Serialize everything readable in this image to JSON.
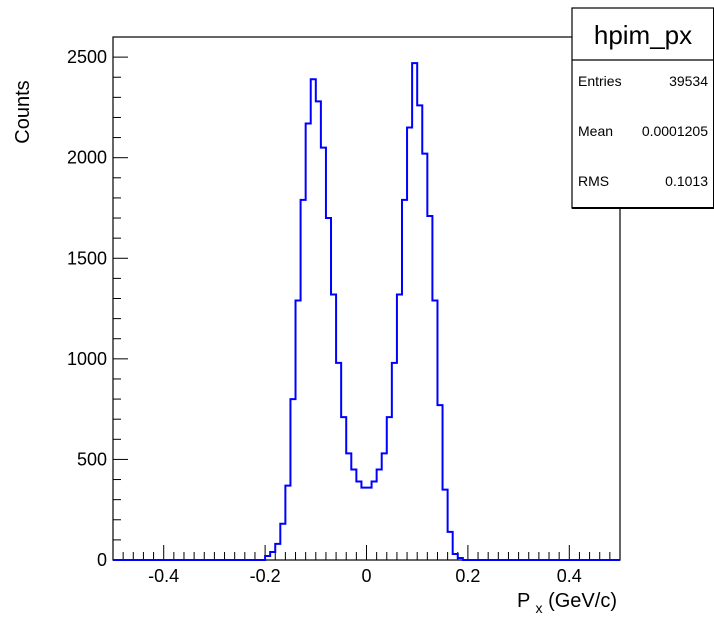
{
  "chart_data": {
    "type": "histogram",
    "xlabel_main": "P",
    "xlabel_sub": "x",
    "xlabel_unit": " (GeV/c)",
    "ylabel": "Counts",
    "xlim": [
      -0.5,
      0.5
    ],
    "ylim": [
      0,
      2600
    ],
    "xticks": [
      -0.4,
      -0.2,
      0,
      0.2,
      0.4
    ],
    "xtick_labels": [
      "-0.4",
      "-0.2",
      "0",
      "0.2",
      "0.4"
    ],
    "yticks": [
      0,
      500,
      1000,
      1500,
      2000,
      2500
    ],
    "ytick_labels": [
      "0",
      "500",
      "1000",
      "1500",
      "2000",
      "2500"
    ],
    "bin_start": -0.5,
    "bin_width": 0.01,
    "line_color": "#0000ff",
    "values": [
      0,
      0,
      0,
      0,
      0,
      0,
      0,
      0,
      0,
      0,
      0,
      0,
      0,
      0,
      0,
      0,
      0,
      0,
      0,
      0,
      0,
      0,
      0,
      0,
      0,
      0,
      0,
      0,
      0,
      0,
      20,
      40,
      80,
      180,
      370,
      800,
      1290,
      1790,
      2170,
      2390,
      2280,
      2050,
      1700,
      1320,
      980,
      710,
      530,
      450,
      390,
      360,
      360,
      390,
      450,
      530,
      710,
      980,
      1320,
      1790,
      2150,
      2470,
      2260,
      2020,
      1710,
      1290,
      770,
      350,
      140,
      30,
      10,
      0,
      0,
      0,
      0,
      0,
      0,
      0,
      0,
      0,
      0,
      0,
      0,
      0,
      0,
      0,
      0,
      0,
      0,
      0,
      0,
      0,
      0,
      0,
      0,
      0,
      0,
      0,
      0,
      0,
      0,
      0
    ]
  },
  "stats_box": {
    "title": "hpim_px",
    "entries_label": "Entries",
    "entries_value": "39534",
    "mean_label": "Mean",
    "mean_value": "0.0001205",
    "rms_label": "RMS",
    "rms_value": "0.1013"
  }
}
